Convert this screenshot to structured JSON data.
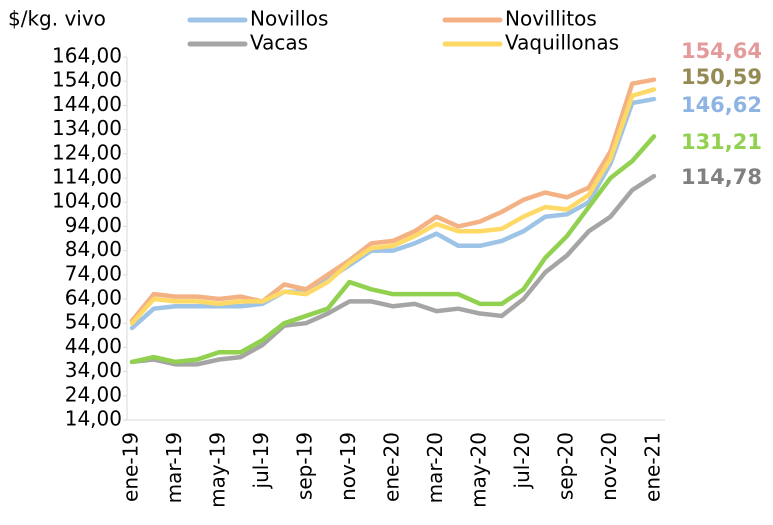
{
  "chart_data": {
    "type": "line",
    "y_label": "$/kg. vivo",
    "categories": [
      "ene-19",
      null,
      "mar-19",
      null,
      "may-19",
      null,
      "jul-19",
      null,
      "sep-19",
      null,
      "nov-19",
      null,
      "ene-20",
      null,
      "mar-20",
      null,
      "may-20",
      null,
      "jul-20",
      null,
      "sep-20",
      null,
      "nov-20",
      null,
      "ene-21"
    ],
    "ylim": [
      14,
      164
    ],
    "yticks": [
      {
        "value": 14,
        "label": "14,00"
      },
      {
        "value": 24,
        "label": "24,00"
      },
      {
        "value": 34,
        "label": "34,00"
      },
      {
        "value": 44,
        "label": "44,00"
      },
      {
        "value": 54,
        "label": "54,00"
      },
      {
        "value": 64,
        "label": "64,00"
      },
      {
        "value": 74,
        "label": "74,00"
      },
      {
        "value": 84,
        "label": "84,00"
      },
      {
        "value": 94,
        "label": "94,00"
      },
      {
        "value": 104,
        "label": "104,00"
      },
      {
        "value": 114,
        "label": "114,00"
      },
      {
        "value": 124,
        "label": "124,00"
      },
      {
        "value": 134,
        "label": "134,00"
      },
      {
        "value": 144,
        "label": "144,00"
      },
      {
        "value": 154,
        "label": "154,00"
      },
      {
        "value": 164,
        "label": "164,00"
      }
    ],
    "series": [
      {
        "name": "Novillos",
        "color": "#9dc3e6",
        "label_color": "#8eb4e3",
        "values": [
          52,
          60,
          61,
          61,
          61,
          61,
          62,
          67,
          67,
          72,
          78,
          84,
          84,
          87,
          91,
          86,
          86,
          88,
          92,
          98,
          99,
          104,
          120,
          145,
          146.62
        ],
        "value_labels": [
          null,
          null,
          null,
          null,
          null,
          null,
          null,
          null,
          null,
          null,
          null,
          null,
          null,
          null,
          null,
          null,
          null,
          null,
          null,
          null,
          null,
          null,
          null,
          null,
          "146,62"
        ]
      },
      {
        "name": "Novillitos",
        "color": "#f4b183",
        "label_color": "#e39a9a",
        "values": [
          55,
          66,
          65,
          65,
          64,
          65,
          63,
          70,
          68,
          74,
          80,
          87,
          88,
          92,
          98,
          94,
          96,
          100,
          105,
          108,
          106,
          110,
          125,
          153,
          154.64
        ],
        "value_labels": [
          null,
          null,
          null,
          null,
          null,
          null,
          null,
          null,
          null,
          null,
          null,
          null,
          null,
          null,
          null,
          null,
          null,
          null,
          null,
          null,
          null,
          null,
          null,
          null,
          "154,64"
        ]
      },
      {
        "name": "Vacas",
        "color": "#a5a5a5",
        "label_color": "#808080",
        "values": [
          38,
          39,
          37,
          37,
          39,
          40,
          45,
          53,
          54,
          58,
          63,
          63,
          61,
          62,
          59,
          60,
          58,
          57,
          64,
          75,
          82,
          92,
          98,
          109,
          114.78
        ],
        "value_labels": [
          null,
          null,
          null,
          null,
          null,
          null,
          null,
          null,
          null,
          null,
          null,
          null,
          null,
          null,
          null,
          null,
          null,
          null,
          null,
          null,
          null,
          null,
          null,
          null,
          "114,78"
        ]
      },
      {
        "name": "Vaquillonas",
        "color": "#ffd966",
        "label_color": "#948a54",
        "values": [
          54,
          64,
          63,
          63,
          62,
          63,
          63,
          67,
          66,
          71,
          79,
          85,
          86,
          90,
          95,
          92,
          92,
          93,
          98,
          102,
          101,
          107,
          122,
          148,
          150.59
        ],
        "value_labels": [
          null,
          null,
          null,
          null,
          null,
          null,
          null,
          null,
          null,
          null,
          null,
          null,
          null,
          null,
          null,
          null,
          null,
          null,
          null,
          null,
          null,
          null,
          null,
          null,
          "150,59"
        ]
      },
      {
        "color": "#92d050",
        "label_color": "#92d050",
        "values": [
          38,
          40,
          38,
          39,
          42,
          42,
          47,
          54,
          57,
          60,
          71,
          68,
          66,
          66,
          66,
          66,
          62,
          62,
          68,
          81,
          90,
          102,
          114,
          121,
          131.21
        ],
        "value_labels": [
          null,
          null,
          null,
          null,
          null,
          null,
          null,
          null,
          null,
          null,
          null,
          null,
          null,
          null,
          null,
          null,
          null,
          null,
          null,
          null,
          null,
          null,
          null,
          null,
          "131,21"
        ]
      }
    ]
  }
}
